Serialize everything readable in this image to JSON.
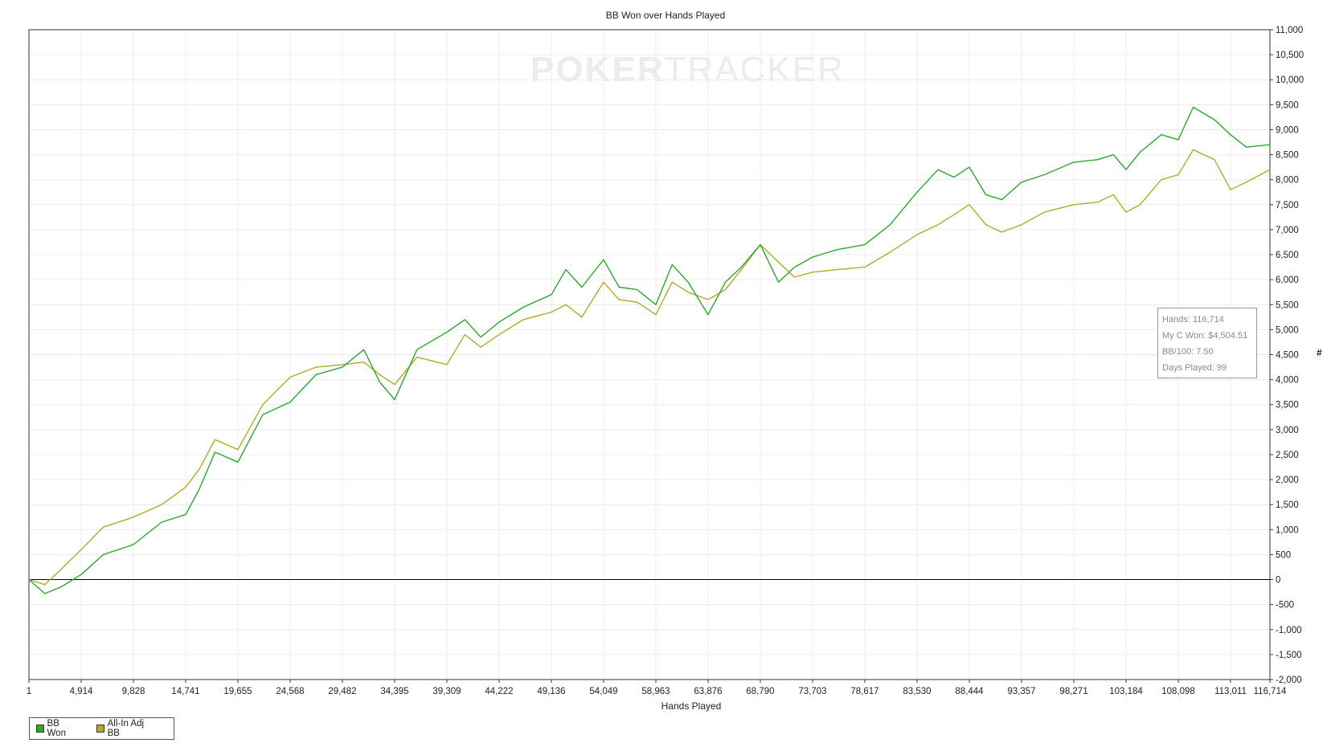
{
  "chart_data": {
    "type": "line",
    "title": "BB Won over Hands Played",
    "xlabel": "Hands Played",
    "ylabel": "#",
    "xlim": [
      1,
      116714
    ],
    "ylim": [
      -2000,
      11000
    ],
    "grid": true,
    "legend_position": "bottom-left",
    "x_ticks": [
      "1",
      "4,914",
      "9,828",
      "14,741",
      "19,655",
      "24,568",
      "29,482",
      "34,395",
      "39,309",
      "44,222",
      "49,136",
      "54,049",
      "58,963",
      "63,876",
      "68,790",
      "73,703",
      "78,617",
      "83,530",
      "88,444",
      "93,357",
      "98,271",
      "103,184",
      "108,098",
      "113,011",
      "116,714"
    ],
    "x_tick_values": [
      1,
      4914,
      9828,
      14741,
      19655,
      24568,
      29482,
      34395,
      39309,
      44222,
      49136,
      54049,
      58963,
      63876,
      68790,
      73703,
      78617,
      83530,
      88444,
      93357,
      98271,
      103184,
      108098,
      113011,
      116714
    ],
    "y_ticks": [
      "-2,000",
      "-1,500",
      "-1,000",
      "-500",
      "0",
      "500",
      "1,000",
      "1,500",
      "2,000",
      "2,500",
      "3,000",
      "3,500",
      "4,000",
      "4,500",
      "5,000",
      "5,500",
      "6,000",
      "6,500",
      "7,000",
      "7,500",
      "8,000",
      "8,500",
      "9,000",
      "9,500",
      "10,000",
      "10,500",
      "11,000"
    ],
    "y_tick_values": [
      -2000,
      -1500,
      -1000,
      -500,
      0,
      500,
      1000,
      1500,
      2000,
      2500,
      3000,
      3500,
      4000,
      4500,
      5000,
      5500,
      6000,
      6500,
      7000,
      7500,
      8000,
      8500,
      9000,
      9500,
      10000,
      10500,
      11000
    ],
    "x": [
      1,
      1500,
      3000,
      4914,
      7000,
      9828,
      12500,
      14741,
      16000,
      17500,
      19655,
      22000,
      24568,
      27000,
      29482,
      31500,
      33000,
      34395,
      36500,
      39309,
      41000,
      42500,
      44222,
      46500,
      49136,
      50500,
      52000,
      54049,
      55500,
      57200,
      58963,
      60500,
      62000,
      63876,
      65500,
      67000,
      68790,
      70500,
      72000,
      73703,
      76000,
      78617,
      81000,
      83530,
      85500,
      87000,
      88444,
      90000,
      91500,
      93357,
      95500,
      98271,
      100500,
      102000,
      103184,
      104500,
      106500,
      108098,
      109500,
      111500,
      113011,
      114500,
      116714
    ],
    "series": [
      {
        "name": "BB Won",
        "color": "#2ca82c",
        "values": [
          0,
          -280,
          -150,
          100,
          500,
          700,
          1150,
          1300,
          1800,
          2550,
          2350,
          3300,
          3550,
          4100,
          4250,
          4600,
          3950,
          3600,
          4600,
          4950,
          5200,
          4850,
          5150,
          5450,
          5700,
          6200,
          5850,
          6400,
          5850,
          5800,
          5500,
          6300,
          5950,
          5300,
          5950,
          6250,
          6700,
          5950,
          6250,
          6450,
          6600,
          6700,
          7100,
          7750,
          8200,
          8050,
          8250,
          7700,
          7600,
          7950,
          8100,
          8350,
          8400,
          8500,
          8200,
          8550,
          8900,
          8800,
          9450,
          9200,
          8900,
          8650,
          8700
        ]
      },
      {
        "name": "All-In Adj BB",
        "color": "#b1ab25",
        "values": [
          0,
          -100,
          200,
          600,
          1050,
          1250,
          1500,
          1850,
          2200,
          2800,
          2600,
          3500,
          4050,
          4250,
          4300,
          4350,
          4100,
          3900,
          4450,
          4300,
          4900,
          4650,
          4900,
          5200,
          5350,
          5500,
          5250,
          5950,
          5600,
          5550,
          5300,
          5950,
          5750,
          5600,
          5800,
          6200,
          6700,
          6350,
          6050,
          6150,
          6200,
          6250,
          6550,
          6900,
          7100,
          7300,
          7500,
          7100,
          6950,
          7100,
          7350,
          7500,
          7550,
          7700,
          7350,
          7500,
          8000,
          8100,
          8600,
          8400,
          7800,
          7950,
          8200
        ]
      }
    ]
  },
  "tooltip": {
    "hands": "Hands: 116,714",
    "won": "My C Won: $4,504.51",
    "bb100": "BB/100: 7.50",
    "days": "Days Played: 99"
  },
  "watermark": {
    "part1": "POKER",
    "part2": "TRACKER"
  },
  "legend": [
    {
      "label": "BB Won",
      "color": "#2ca82c"
    },
    {
      "label": "All-In Adj BB",
      "color": "#b1ab25"
    }
  ]
}
